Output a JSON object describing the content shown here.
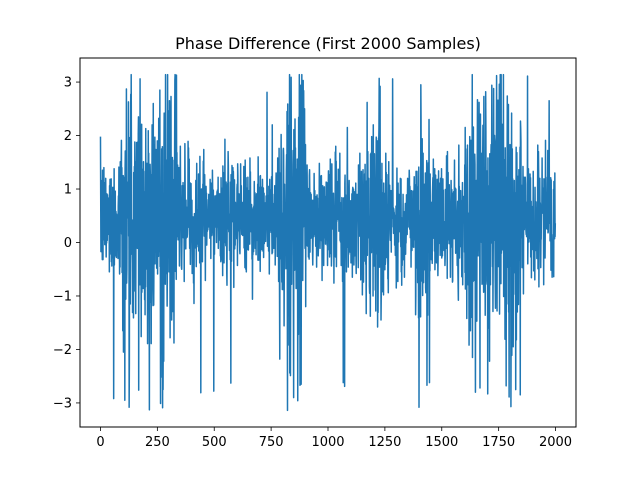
{
  "chart_data": {
    "type": "line",
    "title": "Phase Difference (First 2000 Samples)",
    "xlabel": "",
    "ylabel": "",
    "xlim": [
      -90,
      2090
    ],
    "ylim": [
      -3.45,
      3.45
    ],
    "xticks": [
      0,
      250,
      500,
      750,
      1000,
      1250,
      1500,
      1750,
      2000
    ],
    "xtick_labels": [
      "0",
      "250",
      "500",
      "750",
      "1000",
      "1250",
      "1500",
      "1750",
      "2000"
    ],
    "yticks": [
      -3,
      -2,
      -1,
      0,
      1,
      2,
      3
    ],
    "ytick_labels": [
      "−3",
      "−2",
      "−1",
      "0",
      "1",
      "2",
      "3"
    ],
    "grid": false,
    "legend": "none",
    "series": [
      {
        "color": "#1f77b4",
        "x_start": 0,
        "x_step": 1,
        "count": 2000,
        "value_range": [
          -3.14,
          3.14
        ],
        "values": []
      }
    ]
  }
}
